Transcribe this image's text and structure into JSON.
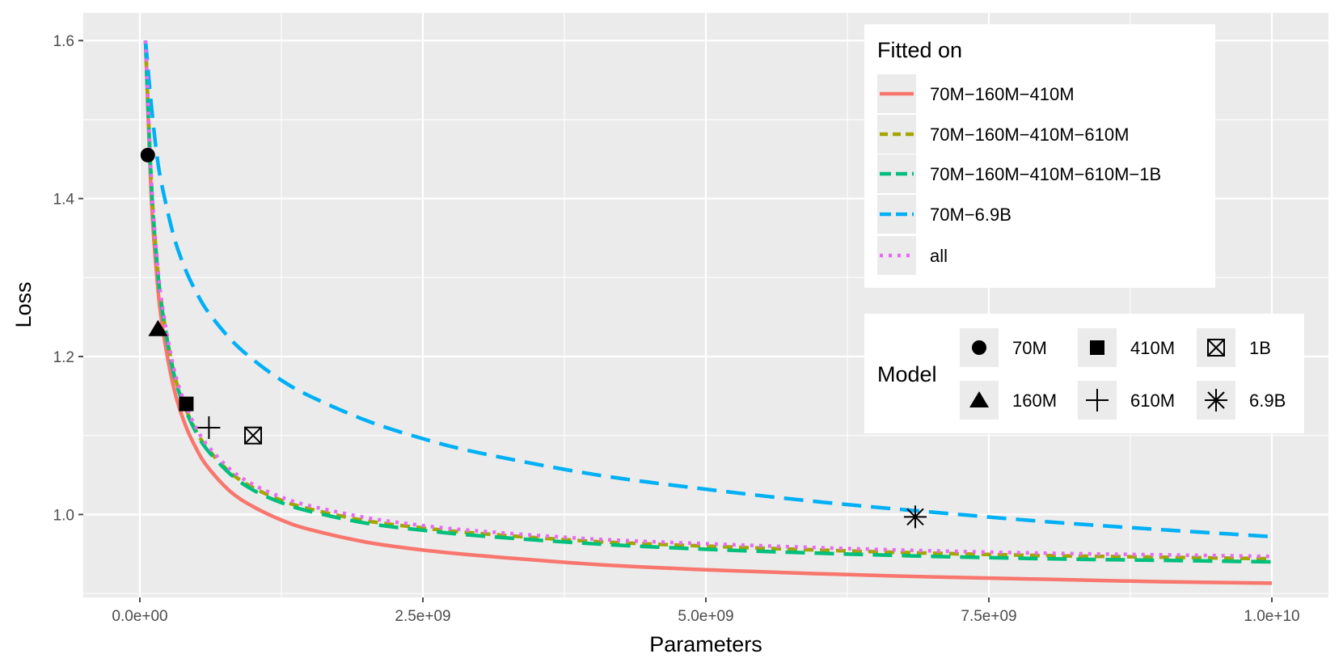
{
  "chart_data": {
    "type": "line",
    "xlabel": "Parameters",
    "ylabel": "Loss",
    "xlim": [
      -500000000,
      10500000000
    ],
    "ylim": [
      0.895,
      1.635
    ],
    "x_ticks": [
      0,
      2500000000,
      5000000000,
      7500000000,
      10000000000
    ],
    "x_tick_labels": [
      "0.0e+00",
      "2.5e+09",
      "5.0e+09",
      "7.5e+09",
      "1.0e+10"
    ],
    "y_ticks": [
      1.0,
      1.2,
      1.4,
      1.6
    ],
    "y_tick_labels": [
      "1.0",
      "1.2",
      "1.4",
      "1.6"
    ],
    "grid": true,
    "x": [
      50000000,
      100000000,
      150000000,
      200000000,
      300000000,
      400000000,
      500000000,
      600000000,
      800000000,
      1000000000,
      1250000000,
      1500000000,
      2000000000,
      2500000000,
      3000000000,
      4000000000,
      5000000000,
      6000000000,
      7000000000,
      8000000000,
      9000000000,
      10000000000
    ],
    "series": [
      {
        "name": "70M−160M−410M",
        "color": "#F8766D",
        "dash": "solid",
        "values": [
          1.6,
          1.405,
          1.301,
          1.237,
          1.16,
          1.114,
          1.083,
          1.06,
          1.029,
          1.01,
          0.993,
          0.981,
          0.965,
          0.955,
          0.948,
          0.937,
          0.93,
          0.925,
          0.921,
          0.918,
          0.915,
          0.913
        ]
      },
      {
        "name": "70M−160M−410M−610M",
        "color": "#A3A500",
        "dash": "dashed",
        "values": [
          1.6,
          1.424,
          1.322,
          1.258,
          1.18,
          1.136,
          1.105,
          1.083,
          1.053,
          1.034,
          1.018,
          1.007,
          0.992,
          0.983,
          0.976,
          0.966,
          0.96,
          0.955,
          0.951,
          0.948,
          0.946,
          0.944
        ]
      },
      {
        "name": "70M−160M−410M−610M−1B",
        "color": "#00BF7D",
        "dash": "longdash",
        "values": [
          1.6,
          1.422,
          1.32,
          1.256,
          1.178,
          1.134,
          1.103,
          1.081,
          1.051,
          1.031,
          1.015,
          1.004,
          0.989,
          0.98,
          0.973,
          0.963,
          0.956,
          0.951,
          0.947,
          0.944,
          0.942,
          0.94
        ]
      },
      {
        "name": "70M−6.9B",
        "color": "#00B0F6",
        "dash": "longdash",
        "values": [
          1.6,
          1.52,
          1.455,
          1.413,
          1.352,
          1.311,
          1.281,
          1.257,
          1.222,
          1.196,
          1.17,
          1.15,
          1.119,
          1.096,
          1.078,
          1.051,
          1.032,
          1.016,
          1.003,
          0.991,
          0.981,
          0.972
        ]
      },
      {
        "name": "all",
        "color": "#E76BF3",
        "dash": "dotted",
        "values": [
          1.6,
          1.428,
          1.327,
          1.263,
          1.185,
          1.14,
          1.109,
          1.087,
          1.057,
          1.038,
          1.022,
          1.011,
          0.996,
          0.986,
          0.979,
          0.969,
          0.963,
          0.958,
          0.954,
          0.951,
          0.949,
          0.947
        ]
      }
    ],
    "points": [
      {
        "model": "70M",
        "x": 70000000,
        "y": 1.455,
        "shape": "circle"
      },
      {
        "model": "160M",
        "x": 160000000,
        "y": 1.235,
        "shape": "triangle"
      },
      {
        "model": "410M",
        "x": 410000000,
        "y": 1.14,
        "shape": "square"
      },
      {
        "model": "610M",
        "x": 610000000,
        "y": 1.11,
        "shape": "plus"
      },
      {
        "model": "1B",
        "x": 1000000000,
        "y": 1.1,
        "shape": "boxx"
      },
      {
        "model": "6.9B",
        "x": 6850000000,
        "y": 0.997,
        "shape": "star"
      }
    ]
  },
  "legend_fitted": {
    "title": "Fitted on",
    "items": [
      "70M−160M−410M",
      "70M−160M−410M−610M",
      "70M−160M−410M−610M−1B",
      "70M−6.9B",
      "all"
    ]
  },
  "legend_model": {
    "title": "Model",
    "items": [
      "70M",
      "410M",
      "1B",
      "160M",
      "610M",
      "6.9B"
    ]
  },
  "colors": {
    "panel": "#EBEBEB",
    "grid": "#FFFFFF",
    "tick": "#4D4D4D",
    "key_bg": "#EBEBEB"
  }
}
